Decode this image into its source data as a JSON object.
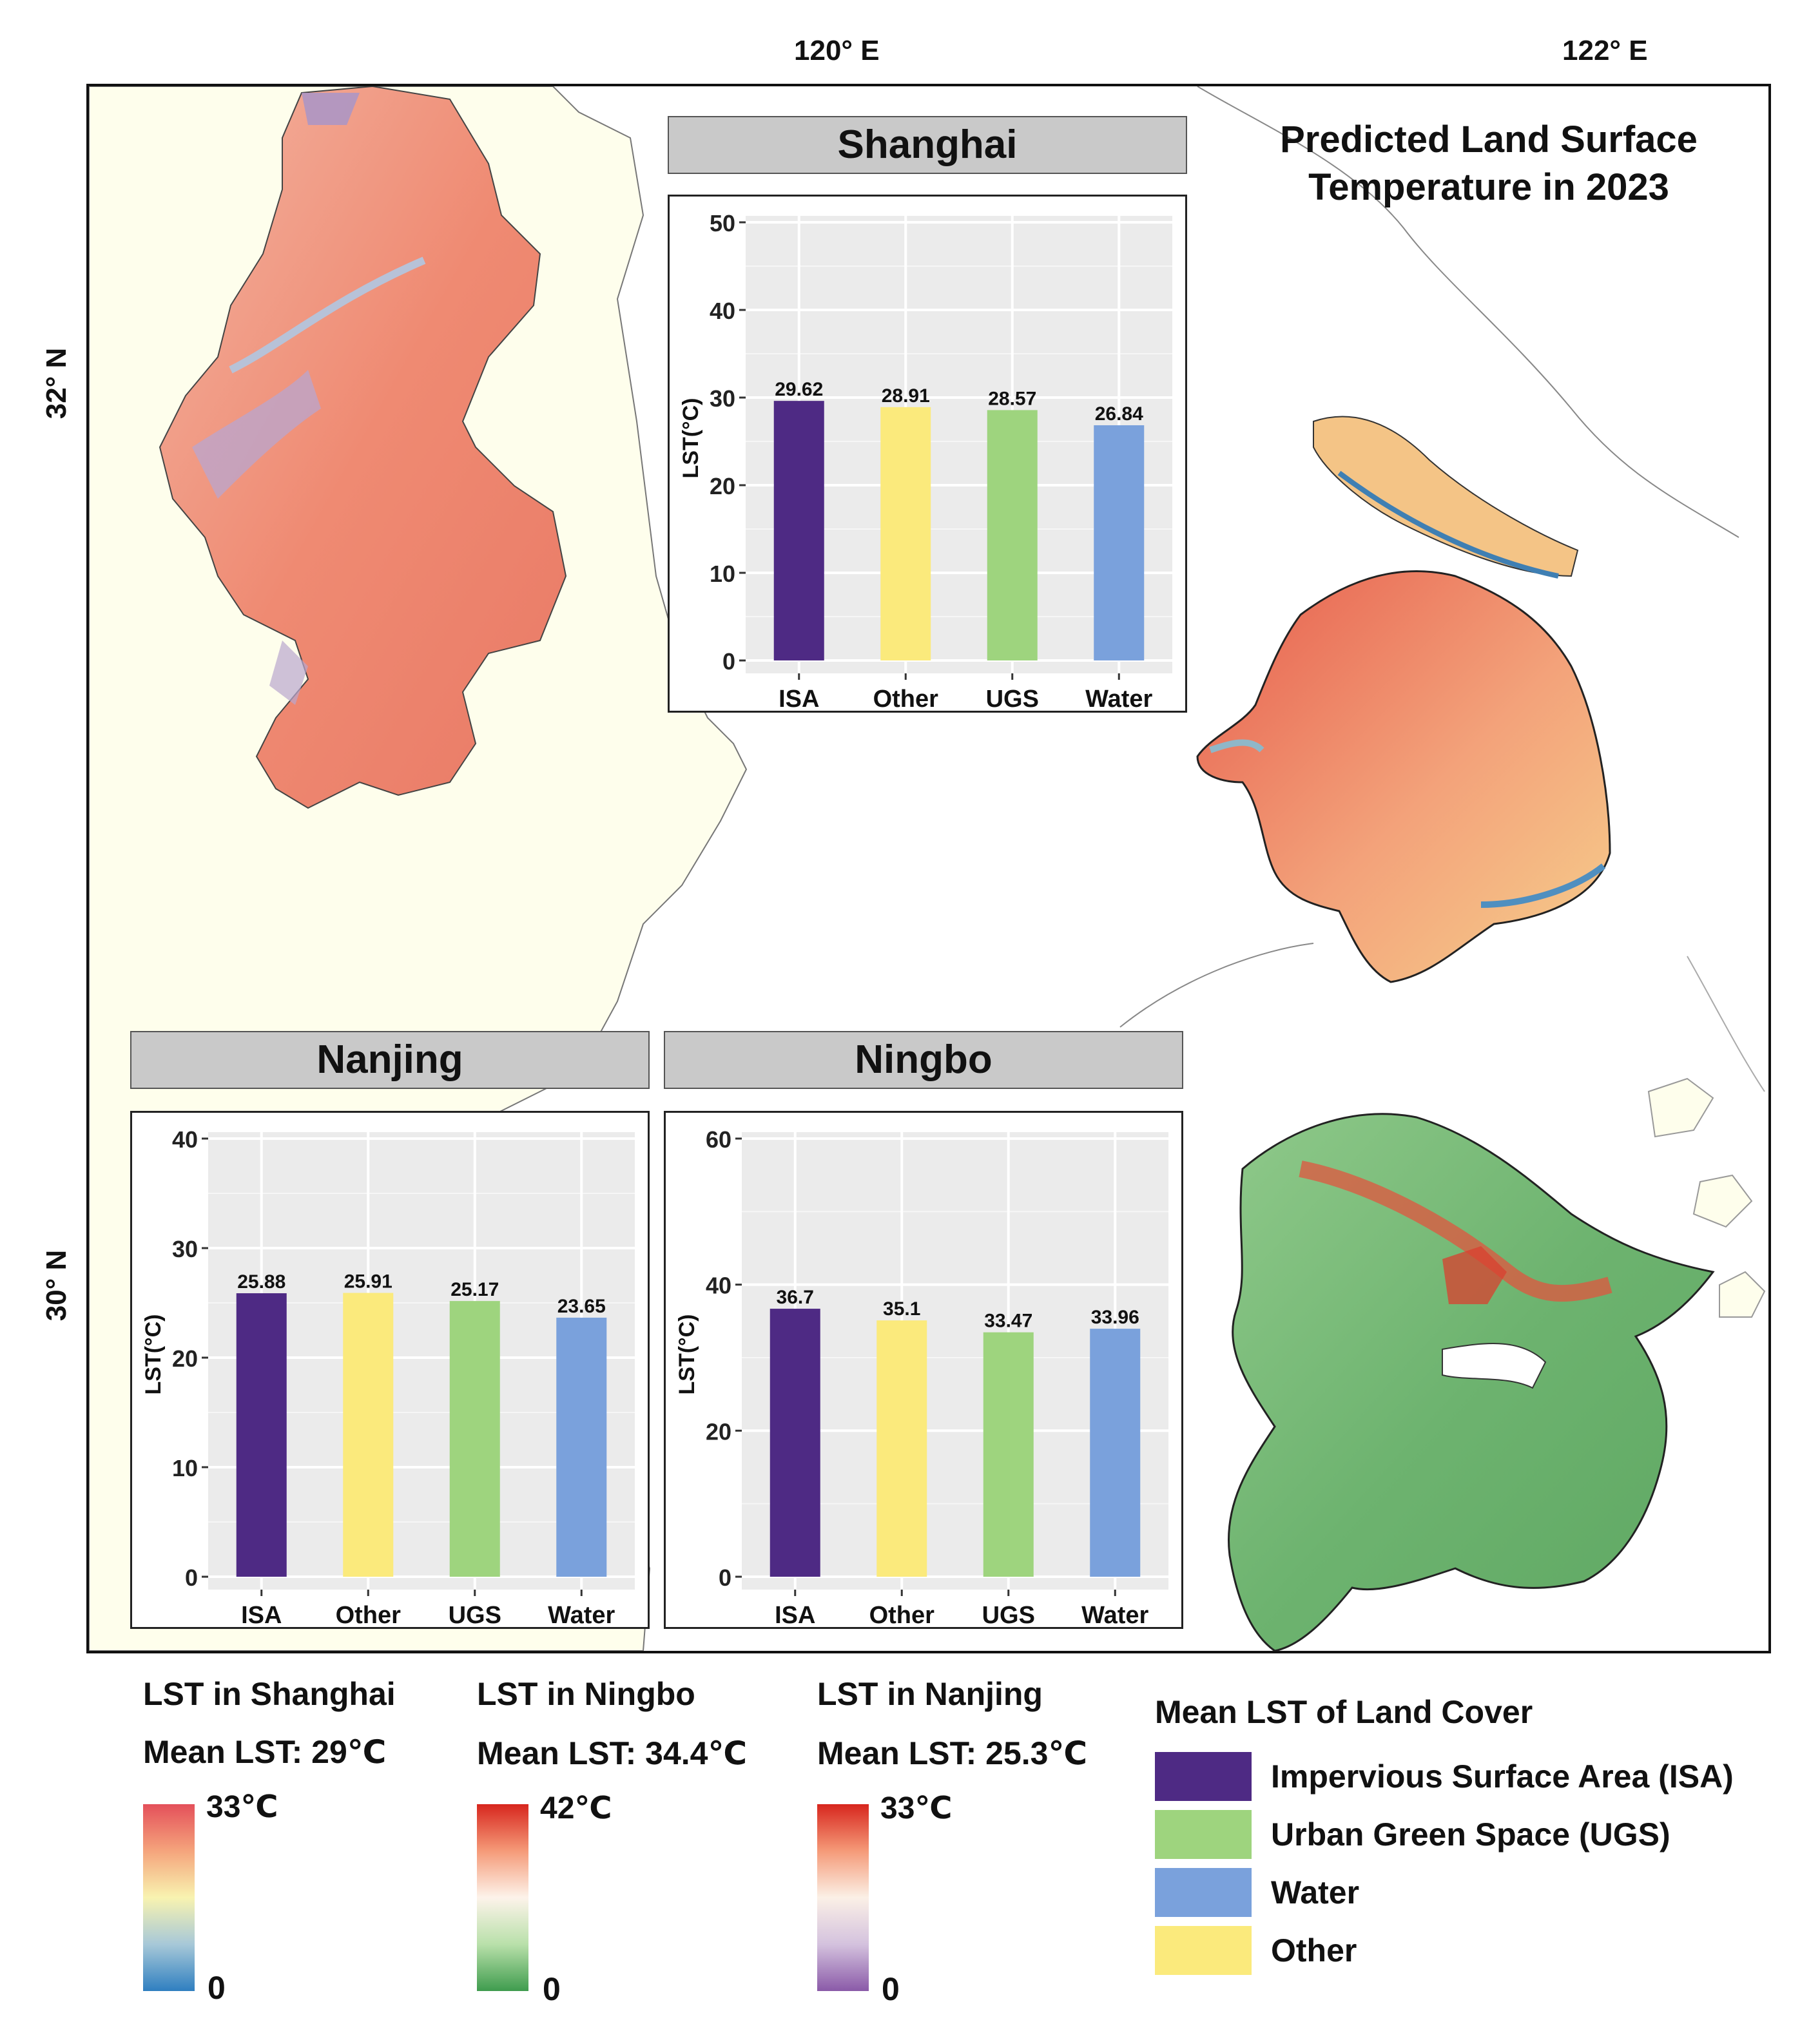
{
  "map": {
    "title_line1": "Predicted Land Surface",
    "title_line2": "Temperature in 2023",
    "lon_labels": [
      "120° E",
      "122° E"
    ],
    "lat_labels": [
      "32° N",
      "30° N"
    ]
  },
  "colors": {
    "isa": "#4e2a84",
    "other": "#fbea7c",
    "ugs": "#9ed47e",
    "water": "#7aa1dc",
    "land": "#fefeec",
    "panel_bg": "#ebebeb"
  },
  "chart_data": [
    {
      "type": "bar",
      "title": "Shanghai",
      "categories": [
        "ISA",
        "Other",
        "UGS",
        "Water"
      ],
      "values": [
        29.62,
        28.91,
        28.57,
        26.84
      ],
      "value_labels": [
        "29.62",
        "28.91",
        "28.57",
        "26.84"
      ],
      "ylabel": "LST(°C)",
      "ylim": [
        0,
        50
      ],
      "yticks": [
        0,
        10,
        20,
        30,
        40,
        50
      ]
    },
    {
      "type": "bar",
      "title": "Nanjing",
      "categories": [
        "ISA",
        "Other",
        "UGS",
        "Water"
      ],
      "values": [
        25.88,
        25.91,
        25.17,
        23.65
      ],
      "value_labels": [
        "25.88",
        "25.91",
        "25.17",
        "23.65"
      ],
      "ylabel": "LST(°C)",
      "ylim": [
        0,
        40
      ],
      "yticks": [
        0,
        10,
        20,
        30,
        40
      ]
    },
    {
      "type": "bar",
      "title": "Ningbo",
      "categories": [
        "ISA",
        "Other",
        "UGS",
        "Water"
      ],
      "values": [
        36.7,
        35.1,
        33.47,
        33.96
      ],
      "value_labels": [
        "36.7",
        "35.1",
        "33.47",
        "33.96"
      ],
      "ylabel": "LST(°C)",
      "ylim": [
        0,
        60
      ],
      "yticks": [
        0,
        20,
        40,
        60
      ]
    }
  ],
  "colorbars": [
    {
      "title": "LST in Shanghai",
      "mean": "Mean LST: 29℃",
      "max": "33℃",
      "min": "0"
    },
    {
      "title": "LST in Ningbo",
      "mean": "Mean LST: 34.4℃",
      "max": "42℃",
      "min": "0"
    },
    {
      "title": "LST in Nanjing",
      "mean": "Mean LST: 25.3℃",
      "max": "33℃",
      "min": "0"
    }
  ],
  "legend": {
    "title": "Mean LST of Land Cover",
    "items": [
      {
        "label": "Impervious Surface Area (ISA)",
        "color": "#4e2a84"
      },
      {
        "label": "Urban Green Space (UGS)",
        "color": "#9ed47e"
      },
      {
        "label": "Water",
        "color": "#7aa1dc"
      },
      {
        "label": "Other",
        "color": "#fbea7c"
      }
    ]
  }
}
